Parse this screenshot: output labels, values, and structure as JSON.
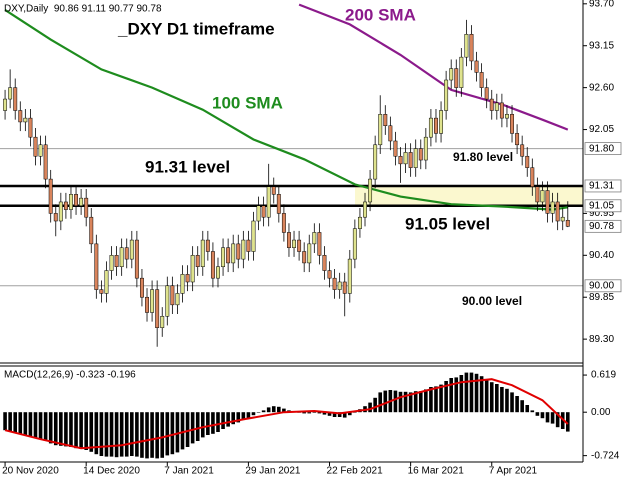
{
  "chart_data": [
    {
      "type": "candlestick",
      "title": "DXY,Daily  90.86 91.11 90.77 90.78",
      "annotations": [
        "_DXY D1 timeframe",
        "91.31 level",
        "91.80 level",
        "91.05 level",
        "90.00 level"
      ],
      "xlim": [
        -1,
        114
      ],
      "xticks": [
        {
          "value": 0,
          "label": "20 Nov 2020"
        },
        {
          "value": 16,
          "label": "14 Dec 2020"
        },
        {
          "value": 32,
          "label": "7 Jan 2021"
        },
        {
          "value": 48,
          "label": "29 Jan 2021"
        },
        {
          "value": 64,
          "label": "22 Feb 2021"
        },
        {
          "value": 80,
          "label": "16 Mar 2021"
        },
        {
          "value": 96,
          "label": "7 Apr 2021"
        }
      ],
      "ylim": [
        89.0,
        93.75
      ],
      "yticks": [
        {
          "value": 93.7,
          "label": "93.70"
        },
        {
          "value": 93.15,
          "label": "93.15"
        },
        {
          "value": 92.6,
          "label": "92.60"
        },
        {
          "value": 92.05,
          "label": "92.05"
        },
        {
          "value": 90.95,
          "label": "90.95"
        },
        {
          "value": 90.4,
          "label": "90.40"
        },
        {
          "value": 89.85,
          "label": "89.85"
        },
        {
          "value": 89.3,
          "label": "89.30"
        }
      ],
      "levels": [
        {
          "value": 91.8,
          "label": "91.80",
          "color": "#a0a0a0",
          "width": 1
        },
        {
          "value": 91.31,
          "label": "91.31",
          "color": "#000000",
          "width": 2.5
        },
        {
          "value": 91.05,
          "label": "91.05",
          "color": "#000000",
          "width": 2.5
        },
        {
          "value": 90.0,
          "label": "90.00",
          "color": "#a0a0a0",
          "width": 1
        }
      ],
      "band_color": "#fbf8cf",
      "last": {
        "value": 90.78,
        "label": "90.78"
      },
      "up_color": "#dfe38e",
      "down_color": "#d9845c",
      "open": [
        92.3,
        92.45,
        92.6,
        92.3,
        92.15,
        92.2,
        91.95,
        91.7,
        91.85,
        91.4,
        90.95,
        90.85,
        91.1,
        91.0,
        91.2,
        91.05,
        91.15,
        90.9,
        90.55,
        89.95,
        89.9,
        90.2,
        90.4,
        90.25,
        90.5,
        90.35,
        90.6,
        90.1,
        89.85,
        89.65,
        89.95,
        89.45,
        89.6,
        90.0,
        89.75,
        89.9,
        90.15,
        90.05,
        90.4,
        90.25,
        90.6,
        90.45,
        90.1,
        90.25,
        90.5,
        90.3,
        90.55,
        90.35,
        90.6,
        90.45,
        90.85,
        91.05,
        90.9,
        91.3,
        91.2,
        90.95,
        90.7,
        90.5,
        90.6,
        90.45,
        90.3,
        90.55,
        90.7,
        90.4,
        90.2,
        90.1,
        89.95,
        90.05,
        89.9,
        90.35,
        90.75,
        90.9,
        91.1,
        91.4,
        91.85,
        92.25,
        92.1,
        91.9,
        91.7,
        91.6,
        91.75,
        91.55,
        91.8,
        91.65,
        91.95,
        92.2,
        92.0,
        92.3,
        92.7,
        92.85,
        92.6,
        93.0,
        93.3,
        92.95,
        92.8,
        92.6,
        92.45,
        92.3,
        92.4,
        92.2,
        92.25,
        92.0,
        91.85,
        91.7,
        91.55,
        91.3,
        91.1,
        91.25,
        90.95,
        91.1,
        90.85,
        90.86
      ],
      "high": [
        92.57,
        92.84,
        92.72,
        92.42,
        92.32,
        92.32,
        92.07,
        91.97,
        91.97,
        91.52,
        91.07,
        91.22,
        91.22,
        91.32,
        91.32,
        91.27,
        91.27,
        91.02,
        90.67,
        90.07,
        90.32,
        90.52,
        90.52,
        90.62,
        90.62,
        90.72,
        90.72,
        90.22,
        89.97,
        90.07,
        90.07,
        89.72,
        90.12,
        90.12,
        90.02,
        90.27,
        90.27,
        90.52,
        90.52,
        90.72,
        90.72,
        90.57,
        90.37,
        90.62,
        90.62,
        90.67,
        90.67,
        90.72,
        90.72,
        90.97,
        91.17,
        91.17,
        91.6,
        91.42,
        91.32,
        91.07,
        90.82,
        90.72,
        90.72,
        90.57,
        90.67,
        90.82,
        90.82,
        90.52,
        90.32,
        90.22,
        90.17,
        90.17,
        90.47,
        90.87,
        91.02,
        91.22,
        91.52,
        91.97,
        92.5,
        92.37,
        92.22,
        92.02,
        91.82,
        91.87,
        91.87,
        91.92,
        91.92,
        92.07,
        92.32,
        92.32,
        92.42,
        92.82,
        92.97,
        92.97,
        93.12,
        93.49,
        93.42,
        93.07,
        92.92,
        92.72,
        92.57,
        92.52,
        92.52,
        92.37,
        92.37,
        92.12,
        91.97,
        91.82,
        91.67,
        91.42,
        91.37,
        91.37,
        91.22,
        91.22,
        91.02,
        91.11
      ],
      "low": [
        92.18,
        92.33,
        92.18,
        92.03,
        92.03,
        91.83,
        91.58,
        91.58,
        91.28,
        90.83,
        90.65,
        90.73,
        90.88,
        90.88,
        90.93,
        90.93,
        90.78,
        90.43,
        89.83,
        89.78,
        89.78,
        90.08,
        90.13,
        90.13,
        90.23,
        90.23,
        89.98,
        89.73,
        89.53,
        89.53,
        89.2,
        89.33,
        89.48,
        89.63,
        89.63,
        89.78,
        89.93,
        89.93,
        90.13,
        90.13,
        90.33,
        89.98,
        89.98,
        90.13,
        90.18,
        90.18,
        90.23,
        90.23,
        90.33,
        90.33,
        90.73,
        90.78,
        90.78,
        91.08,
        90.83,
        90.58,
        90.38,
        90.38,
        90.33,
        90.18,
        90.18,
        90.43,
        90.28,
        90.08,
        89.98,
        89.83,
        89.83,
        89.6,
        89.78,
        90.23,
        90.63,
        90.78,
        90.98,
        91.28,
        91.73,
        91.98,
        91.78,
        91.58,
        91.35,
        91.48,
        91.43,
        91.43,
        91.53,
        91.53,
        91.83,
        91.88,
        91.88,
        92.18,
        92.58,
        92.48,
        92.48,
        92.88,
        92.83,
        92.68,
        92.48,
        92.33,
        92.18,
        92.18,
        92.08,
        92.08,
        91.88,
        91.73,
        91.58,
        91.43,
        91.18,
        90.98,
        90.98,
        90.83,
        90.83,
        90.73,
        90.73,
        90.77
      ],
      "close": [
        92.45,
        92.6,
        92.3,
        92.15,
        92.2,
        91.95,
        91.7,
        91.85,
        91.4,
        90.95,
        90.85,
        91.1,
        91.0,
        91.2,
        91.05,
        91.15,
        90.9,
        90.55,
        89.95,
        89.9,
        90.2,
        90.4,
        90.25,
        90.5,
        90.35,
        90.6,
        90.1,
        89.85,
        89.65,
        89.95,
        89.45,
        89.6,
        90.0,
        89.75,
        89.9,
        90.15,
        90.05,
        90.4,
        90.25,
        90.6,
        90.45,
        90.1,
        90.25,
        90.5,
        90.3,
        90.55,
        90.35,
        90.6,
        90.45,
        90.85,
        91.05,
        90.9,
        91.3,
        91.2,
        90.95,
        90.7,
        90.5,
        90.6,
        90.45,
        90.3,
        90.55,
        90.7,
        90.4,
        90.2,
        90.1,
        89.95,
        90.05,
        89.9,
        90.35,
        90.75,
        90.9,
        91.1,
        91.4,
        91.85,
        92.25,
        92.1,
        91.9,
        91.7,
        91.6,
        91.75,
        91.55,
        91.8,
        91.65,
        91.95,
        92.2,
        92.0,
        92.3,
        92.7,
        92.85,
        92.6,
        93.0,
        93.3,
        92.95,
        92.8,
        92.6,
        92.45,
        92.3,
        92.4,
        92.2,
        92.25,
        92.0,
        91.85,
        91.7,
        91.55,
        91.3,
        91.1,
        91.25,
        90.95,
        91.1,
        90.85,
        90.9,
        90.78
      ],
      "sma": [
        {
          "name": "100 SMA",
          "color": "#1e8c1e",
          "x": [
            0,
            9,
            19,
            29,
            39,
            49,
            59,
            69,
            78,
            88,
            98,
            108,
            111
          ],
          "values": [
            93.62,
            93.23,
            92.84,
            92.6,
            92.31,
            91.92,
            91.66,
            91.33,
            91.17,
            91.07,
            91.04,
            91.0,
            91.03
          ]
        },
        {
          "name": "200 SMA",
          "color": "#8b1a8b",
          "x": [
            58,
            68,
            78,
            88,
            98,
            106,
            111
          ],
          "values": [
            93.69,
            93.43,
            93.03,
            92.57,
            92.38,
            92.18,
            92.05
          ]
        }
      ]
    },
    {
      "type": "macd",
      "title": "MACD(12,26,9) -0.323 -0.196",
      "ylim": [
        -0.83,
        0.77
      ],
      "yticks": [
        {
          "value": 0.619,
          "label": "0.619"
        },
        {
          "value": 0,
          "label": "0.00"
        },
        {
          "value": -0.724,
          "label": "-0.724"
        }
      ],
      "color": "#000000",
      "values": [
        -0.3,
        -0.32,
        -0.34,
        -0.36,
        -0.38,
        -0.4,
        -0.43,
        -0.45,
        -0.48,
        -0.52,
        -0.55,
        -0.56,
        -0.57,
        -0.58,
        -0.6,
        -0.61,
        -0.63,
        -0.66,
        -0.7,
        -0.73,
        -0.74,
        -0.74,
        -0.75,
        -0.74,
        -0.74,
        -0.73,
        -0.74,
        -0.76,
        -0.77,
        -0.76,
        -0.77,
        -0.76,
        -0.72,
        -0.7,
        -0.67,
        -0.62,
        -0.58,
        -0.52,
        -0.48,
        -0.42,
        -0.38,
        -0.36,
        -0.33,
        -0.28,
        -0.24,
        -0.2,
        -0.17,
        -0.13,
        -0.1,
        -0.05,
        0.0,
        0.03,
        0.08,
        0.1,
        0.09,
        0.06,
        0.03,
        0.02,
        0.0,
        -0.02,
        -0.02,
        -0.01,
        -0.02,
        -0.04,
        -0.06,
        -0.08,
        -0.08,
        -0.09,
        -0.05,
        0.0,
        0.05,
        0.1,
        0.16,
        0.24,
        0.33,
        0.36,
        0.37,
        0.36,
        0.34,
        0.34,
        0.33,
        0.35,
        0.35,
        0.38,
        0.42,
        0.43,
        0.46,
        0.52,
        0.57,
        0.58,
        0.62,
        0.66,
        0.66,
        0.64,
        0.6,
        0.55,
        0.5,
        0.47,
        0.42,
        0.39,
        0.33,
        0.27,
        0.2,
        0.12,
        0.03,
        -0.06,
        -0.1,
        -0.17,
        -0.19,
        -0.25,
        -0.28,
        -0.323
      ],
      "signal": {
        "color": "#e00000",
        "x": [
          0,
          7,
          15,
          23,
          31,
          39,
          47,
          55,
          61,
          66,
          72,
          78,
          84,
          90,
          96,
          100,
          106,
          111
        ],
        "values": [
          -0.3,
          -0.45,
          -0.6,
          -0.55,
          -0.42,
          -0.25,
          -0.12,
          0.0,
          0.02,
          -0.02,
          0.05,
          0.25,
          0.38,
          0.5,
          0.55,
          0.45,
          0.2,
          -0.196
        ]
      }
    }
  ]
}
